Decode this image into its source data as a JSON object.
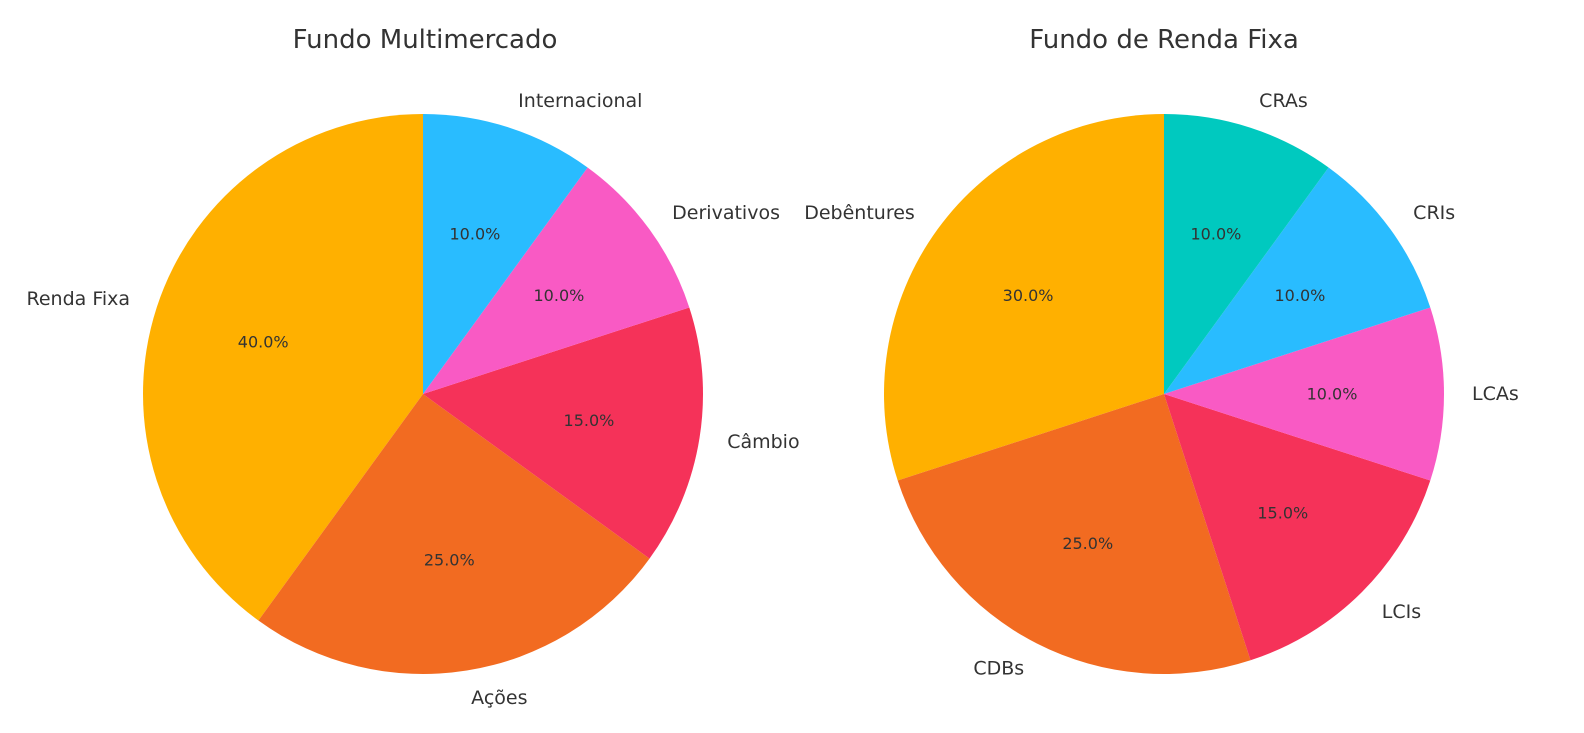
{
  "chart_data": [
    {
      "type": "pie",
      "title": "Fundo Multimercado",
      "start_angle": 90,
      "direction": "counterclockwise",
      "slices": [
        {
          "label": "Renda Fixa",
          "value": 40,
          "pct_label": "40.0%",
          "color": "#FFB000"
        },
        {
          "label": "Ações",
          "value": 25,
          "pct_label": "25.0%",
          "color": "#F26B21"
        },
        {
          "label": "Câmbio",
          "value": 15,
          "pct_label": "15.0%",
          "color": "#F53259"
        },
        {
          "label": "Derivativos",
          "value": 10,
          "pct_label": "10.0%",
          "color": "#F95AC4"
        },
        {
          "label": "Internacional",
          "value": 10,
          "pct_label": "10.0%",
          "color": "#29BCFF"
        }
      ]
    },
    {
      "type": "pie",
      "title": "Fundo de Renda Fixa",
      "start_angle": 90,
      "direction": "counterclockwise",
      "slices": [
        {
          "label": "Debêntures",
          "value": 30,
          "pct_label": "30.0%",
          "color": "#FFB000"
        },
        {
          "label": "CDBs",
          "value": 25,
          "pct_label": "25.0%",
          "color": "#F26B21"
        },
        {
          "label": "LCIs",
          "value": 15,
          "pct_label": "15.0%",
          "color": "#F53259"
        },
        {
          "label": "LCAs",
          "value": 10,
          "pct_label": "10.0%",
          "color": "#F95AC4"
        },
        {
          "label": "CRIs",
          "value": 10,
          "pct_label": "10.0%",
          "color": "#29BCFF"
        },
        {
          "label": "CRAs",
          "value": 10,
          "pct_label": "10.0%",
          "color": "#00C9BF"
        }
      ]
    }
  ]
}
